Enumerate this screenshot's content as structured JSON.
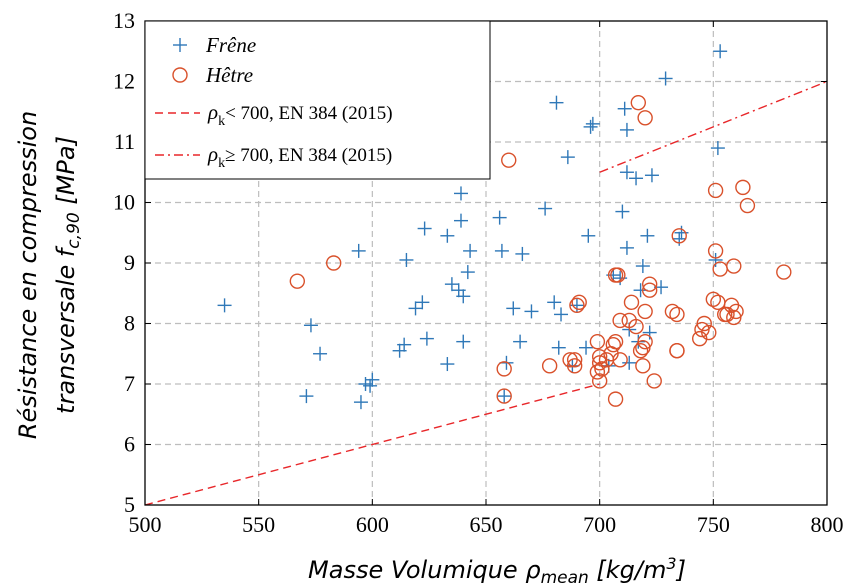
{
  "chart_data": {
    "type": "scatter",
    "xlabel": "Masse Volumique ρmean [kg/m3]",
    "ylabel_line1": "Résistance en compression",
    "ylabel_line2": "transversale fc,90 [MPa]",
    "xlim": [
      500,
      800
    ],
    "ylim": [
      5,
      13
    ],
    "x_ticks": [
      500,
      550,
      600,
      650,
      700,
      750,
      800
    ],
    "y_ticks": [
      5,
      6,
      7,
      8,
      9,
      10,
      11,
      12,
      13
    ],
    "grid": true,
    "legend_position": "top-left",
    "colors": {
      "frene": "#2f78b8",
      "hetre": "#d9512b",
      "ref": "#e8272a"
    },
    "series": [
      {
        "name": "Frêne",
        "marker": "plus",
        "points": [
          [
            535,
            8.3
          ],
          [
            571,
            6.8
          ],
          [
            573,
            7.97
          ],
          [
            577,
            7.5
          ],
          [
            594,
            9.2
          ],
          [
            595,
            6.7
          ],
          [
            597,
            7.0
          ],
          [
            599,
            6.97
          ],
          [
            600,
            7.07
          ],
          [
            612,
            7.55
          ],
          [
            614,
            7.65
          ],
          [
            615,
            9.05
          ],
          [
            619,
            8.25
          ],
          [
            622,
            8.35
          ],
          [
            623,
            9.57
          ],
          [
            624,
            7.75
          ],
          [
            633,
            7.33
          ],
          [
            633,
            9.45
          ],
          [
            635,
            8.65
          ],
          [
            638,
            8.55
          ],
          [
            639,
            10.15
          ],
          [
            639,
            9.7
          ],
          [
            640,
            8.45
          ],
          [
            640,
            7.7
          ],
          [
            642,
            8.85
          ],
          [
            643,
            9.2
          ],
          [
            648,
            11.3
          ],
          [
            656,
            9.75
          ],
          [
            657,
            9.2
          ],
          [
            658,
            6.8
          ],
          [
            659,
            7.35
          ],
          [
            662,
            8.25
          ],
          [
            665,
            7.7
          ],
          [
            666,
            9.15
          ],
          [
            670,
            8.2
          ],
          [
            676,
            9.9
          ],
          [
            680,
            8.35
          ],
          [
            681,
            11.65
          ],
          [
            682,
            7.6
          ],
          [
            683,
            8.15
          ],
          [
            686,
            10.75
          ],
          [
            688,
            7.3
          ],
          [
            690,
            8.3
          ],
          [
            694,
            7.6
          ],
          [
            695,
            9.45
          ],
          [
            696,
            11.25
          ],
          [
            697,
            11.3
          ],
          [
            704,
            7.3
          ],
          [
            706,
            8.8
          ],
          [
            709,
            8.75
          ],
          [
            710,
            9.85
          ],
          [
            711,
            11.55
          ],
          [
            712,
            11.2
          ],
          [
            712,
            10.5
          ],
          [
            712,
            9.25
          ],
          [
            713,
            7.9
          ],
          [
            713,
            7.35
          ],
          [
            716,
            10.4
          ],
          [
            717,
            7.7
          ],
          [
            718,
            8.55
          ],
          [
            719,
            8.95
          ],
          [
            721,
            9.45
          ],
          [
            722,
            7.85
          ],
          [
            723,
            10.45
          ],
          [
            727,
            8.6
          ],
          [
            729,
            12.05
          ],
          [
            735,
            9.4
          ],
          [
            736,
            9.5
          ],
          [
            751,
            9.05
          ],
          [
            752,
            10.9
          ],
          [
            753,
            12.5
          ]
        ]
      },
      {
        "name": "Hêtre",
        "marker": "circle",
        "points": [
          [
            567,
            8.7
          ],
          [
            583,
            9.0
          ],
          [
            658,
            7.25
          ],
          [
            658,
            6.8
          ],
          [
            660,
            10.7
          ],
          [
            678,
            7.3
          ],
          [
            687,
            7.4
          ],
          [
            689,
            7.4
          ],
          [
            689,
            7.3
          ],
          [
            690,
            8.3
          ],
          [
            691,
            8.35
          ],
          [
            699,
            7.7
          ],
          [
            699,
            7.2
          ],
          [
            700,
            7.35
          ],
          [
            700,
            7.45
          ],
          [
            700,
            7.05
          ],
          [
            701,
            7.25
          ],
          [
            703,
            7.4
          ],
          [
            705,
            7.5
          ],
          [
            706,
            7.65
          ],
          [
            707,
            7.7
          ],
          [
            707,
            8.8
          ],
          [
            707,
            6.75
          ],
          [
            708,
            8.8
          ],
          [
            709,
            7.4
          ],
          [
            709,
            8.05
          ],
          [
            713,
            8.05
          ],
          [
            714,
            8.35
          ],
          [
            716,
            7.95
          ],
          [
            717,
            11.65
          ],
          [
            718,
            7.55
          ],
          [
            719,
            7.6
          ],
          [
            719,
            7.3
          ],
          [
            720,
            11.4
          ],
          [
            720,
            7.7
          ],
          [
            720,
            8.2
          ],
          [
            722,
            8.55
          ],
          [
            722,
            8.65
          ],
          [
            724,
            7.05
          ],
          [
            732,
            8.2
          ],
          [
            734,
            7.55
          ],
          [
            734,
            7.55
          ],
          [
            734,
            8.15
          ],
          [
            735,
            9.45
          ],
          [
            744,
            7.75
          ],
          [
            745,
            7.9
          ],
          [
            746,
            8.0
          ],
          [
            748,
            7.85
          ],
          [
            750,
            8.4
          ],
          [
            751,
            10.2
          ],
          [
            751,
            9.2
          ],
          [
            752,
            8.35
          ],
          [
            753,
            8.9
          ],
          [
            755,
            8.15
          ],
          [
            756,
            8.15
          ],
          [
            758,
            8.3
          ],
          [
            759,
            8.95
          ],
          [
            759,
            8.1
          ],
          [
            760,
            8.2
          ],
          [
            763,
            10.25
          ],
          [
            765,
            9.95
          ],
          [
            781,
            8.85
          ]
        ]
      }
    ],
    "reference_lines": [
      {
        "style": "dashed",
        "label_cond": "< 700, EN 384 (2015)",
        "x": [
          500,
          700
        ],
        "y": [
          5,
          7
        ]
      },
      {
        "style": "dashdot",
        "label_cond": "≥ 700, EN 384 (2015)",
        "x": [
          700,
          800
        ],
        "y": [
          10.5,
          12
        ]
      }
    ]
  }
}
